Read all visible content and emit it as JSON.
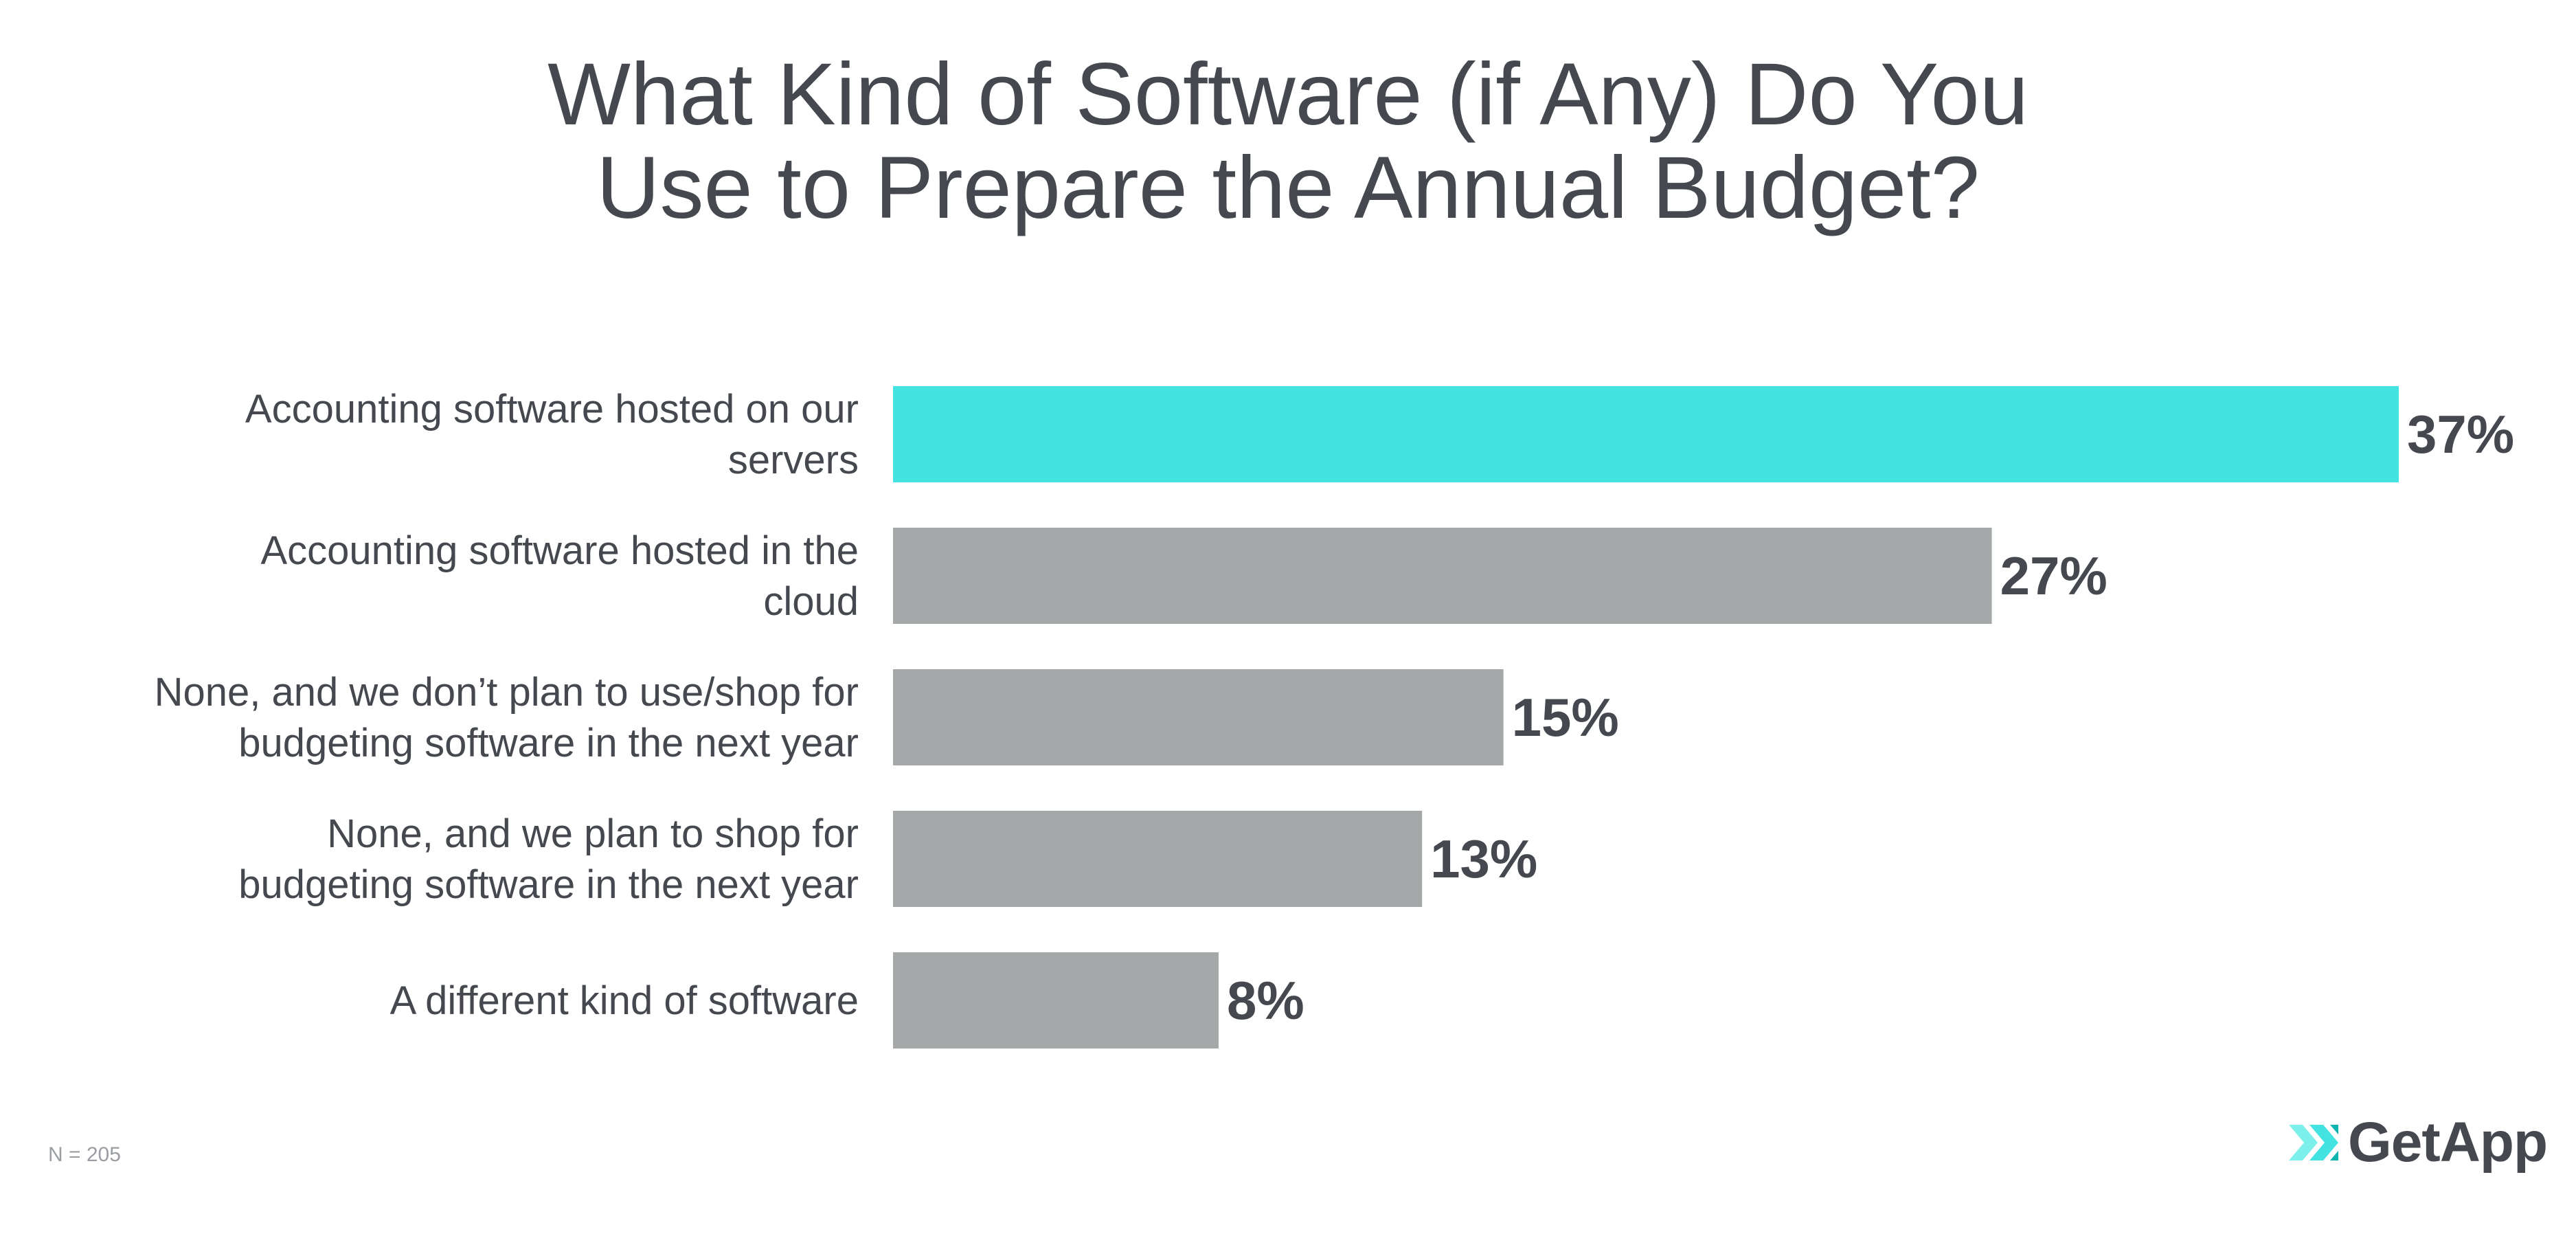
{
  "chart_data": {
    "type": "bar",
    "orientation": "horizontal",
    "title": "What Kind of Software (if Any) Do You Use to Prepare the Annual Budget?",
    "title_lines": [
      "What Kind of Software (if Any) Do You",
      "Use to Prepare the Annual Budget?"
    ],
    "categories": [
      [
        "Accounting software hosted on our",
        "servers"
      ],
      [
        "Accounting software hosted in the",
        "cloud"
      ],
      [
        "None, and we don’t plan to use/shop for",
        "budgeting software in the next year"
      ],
      [
        "None, and we plan to shop for",
        "budgeting software in the next year"
      ],
      [
        "A different kind of software"
      ]
    ],
    "values": [
      37,
      27,
      15,
      13,
      8
    ],
    "value_labels": [
      "37%",
      "27%",
      "15%",
      "13%",
      "8%"
    ],
    "unit": "%",
    "xlim": [
      0,
      37
    ],
    "grid": false,
    "legend": "none",
    "colors": {
      "highlight": "#42e3e0",
      "default": "#a5a8a8",
      "text": "#45484f"
    },
    "highlight_index": 0
  },
  "footnote": "N = 205",
  "logo": {
    "text": "GetApp",
    "icon": "getapp-chevrons-icon",
    "colors": [
      "#7ef0ec",
      "#42e3e0",
      "#0fb3b0"
    ]
  }
}
